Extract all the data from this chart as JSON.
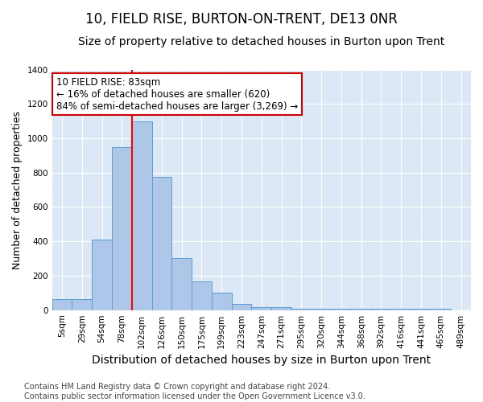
{
  "title": "10, FIELD RISE, BURTON-ON-TRENT, DE13 0NR",
  "subtitle": "Size of property relative to detached houses in Burton upon Trent",
  "xlabel": "Distribution of detached houses by size in Burton upon Trent",
  "ylabel": "Number of detached properties",
  "footer_line1": "Contains HM Land Registry data © Crown copyright and database right 2024.",
  "footer_line2": "Contains public sector information licensed under the Open Government Licence v3.0.",
  "categories": [
    "5sqm",
    "29sqm",
    "54sqm",
    "78sqm",
    "102sqm",
    "126sqm",
    "150sqm",
    "175sqm",
    "199sqm",
    "223sqm",
    "247sqm",
    "271sqm",
    "295sqm",
    "320sqm",
    "344sqm",
    "368sqm",
    "392sqm",
    "416sqm",
    "441sqm",
    "465sqm",
    "489sqm"
  ],
  "values": [
    65,
    65,
    410,
    950,
    1100,
    775,
    305,
    165,
    100,
    35,
    18,
    18,
    10,
    10,
    10,
    10,
    10,
    10,
    10,
    10,
    0
  ],
  "bar_color": "#aec6e8",
  "bar_edge_color": "#5a9fd4",
  "red_line_x": 3.5,
  "annotation_title": "10 FIELD RISE: 83sqm",
  "annotation_line1": "← 16% of detached houses are smaller (620)",
  "annotation_line2": "84% of semi-detached houses are larger (3,269) →",
  "annotation_box_color": "#ffffff",
  "annotation_border_color": "#cc0000",
  "ylim": [
    0,
    1400
  ],
  "yticks": [
    0,
    200,
    400,
    600,
    800,
    1000,
    1200,
    1400
  ],
  "background_color": "#dce8f5",
  "grid_color": "#ffffff",
  "fig_background": "#ffffff",
  "title_fontsize": 12,
  "subtitle_fontsize": 10,
  "xlabel_fontsize": 10,
  "ylabel_fontsize": 9,
  "tick_fontsize": 7.5,
  "annotation_fontsize": 8.5,
  "footer_fontsize": 7
}
